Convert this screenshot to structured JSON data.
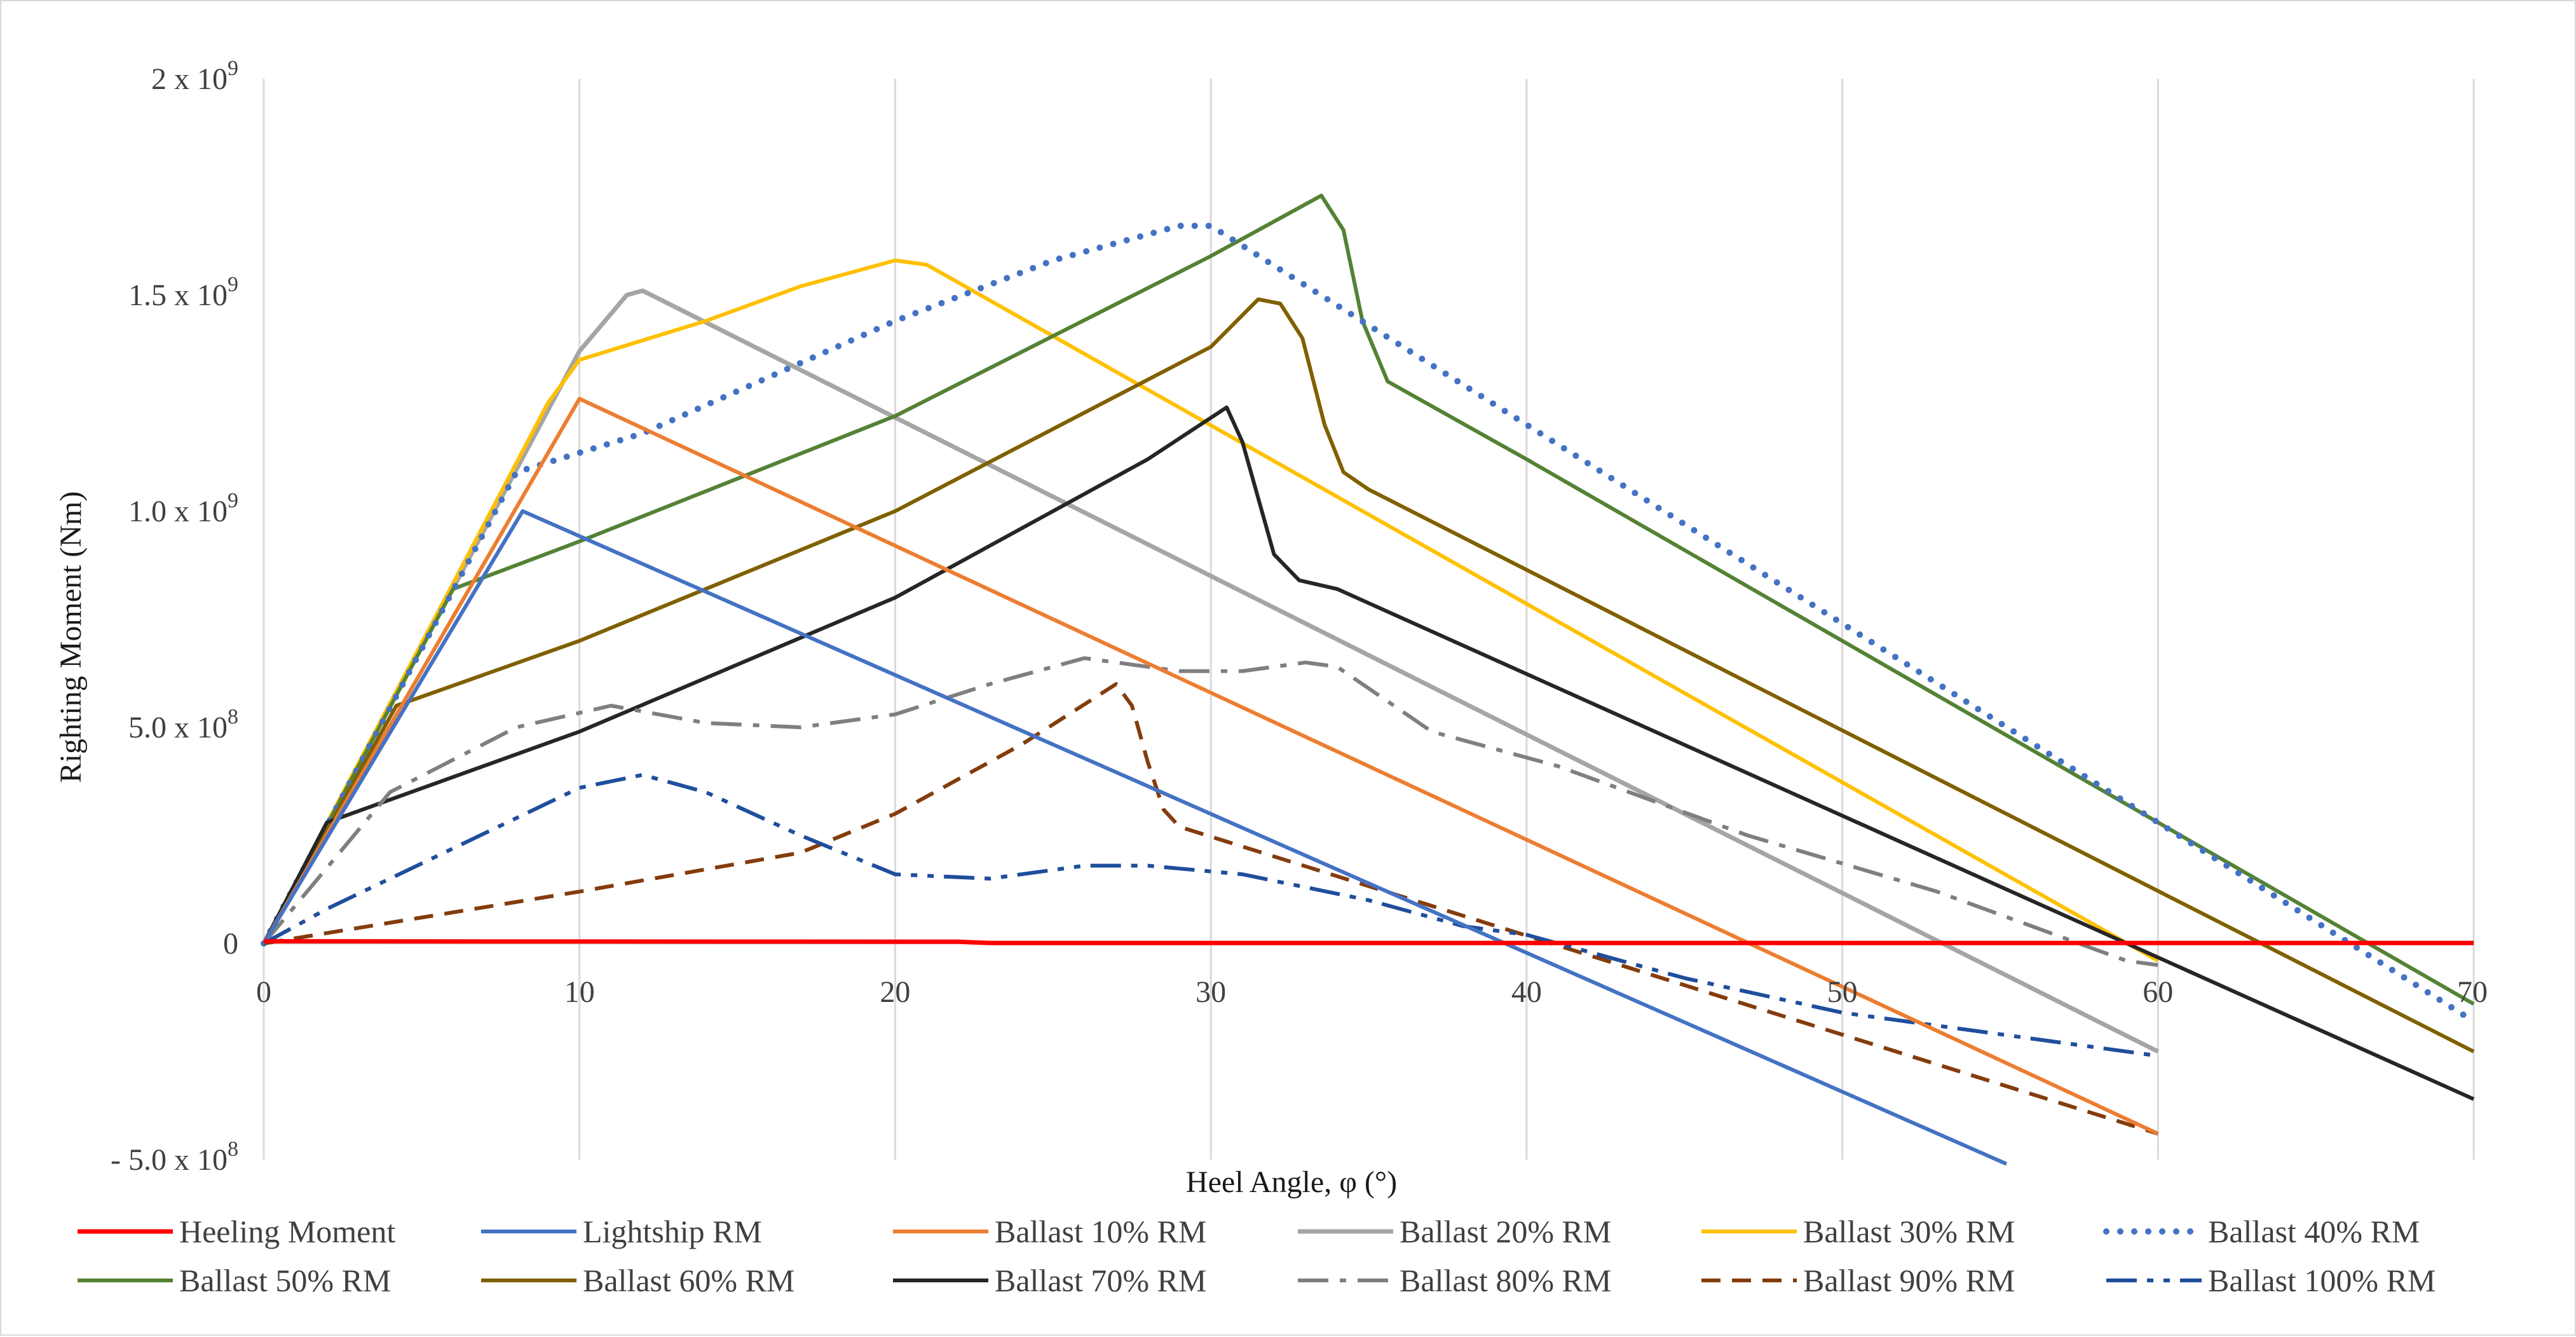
{
  "chart_data": {
    "type": "line",
    "title": "",
    "xlabel": "Heel Angle, φ (°)",
    "ylabel": "Righting Moment (Nm)",
    "xlim": [
      0,
      70
    ],
    "ylim": [
      -500000000,
      2000000000
    ],
    "grid": "vertical",
    "legend_position": "bottom",
    "x_ticks": [
      {
        "value": 0,
        "label": "0"
      },
      {
        "value": 10,
        "label": "10"
      },
      {
        "value": 20,
        "label": "20"
      },
      {
        "value": 30,
        "label": "30"
      },
      {
        "value": 40,
        "label": "40"
      },
      {
        "value": 50,
        "label": "50"
      },
      {
        "value": 60,
        "label": "60"
      },
      {
        "value": 70,
        "label": "70"
      }
    ],
    "y_ticks": [
      {
        "value": 2000000000,
        "mantissa": "2 x 10",
        "exp": "9"
      },
      {
        "value": 1500000000,
        "mantissa": "1.5 x 10",
        "exp": "9"
      },
      {
        "value": 1000000000,
        "mantissa": "1.0 x 10",
        "exp": "9"
      },
      {
        "value": 500000000,
        "mantissa": "5.0 x 10",
        "exp": "8"
      },
      {
        "value": 0,
        "mantissa": "0",
        "exp": ""
      },
      {
        "value": -500000000,
        "mantissa": "- 5.0 x 10",
        "exp": "8"
      }
    ],
    "series": [
      {
        "name": "Heeling Moment",
        "color": "#ff0000",
        "dash": "solid",
        "width": 7,
        "points": [
          [
            0,
            5000000.0
          ],
          [
            22,
            4000000.0
          ],
          [
            23,
            1000000.0
          ],
          [
            70,
            1000000.0
          ]
        ]
      },
      {
        "name": "Lightship RM",
        "color": "#4472c4",
        "dash": "solid",
        "width": 6,
        "points": [
          [
            0,
            0
          ],
          [
            8.2,
            1000000000.0
          ],
          [
            55.2,
            -510000000.0
          ]
        ]
      },
      {
        "name": "Ballast 10% RM",
        "color": "#ed7d31",
        "dash": "solid",
        "width": 6,
        "points": [
          [
            0,
            0
          ],
          [
            10,
            1260000000.0
          ],
          [
            60,
            -440000000.0
          ]
        ]
      },
      {
        "name": "Ballast 20% RM",
        "color": "#a5a5a5",
        "dash": "solid",
        "width": 7,
        "points": [
          [
            0,
            0
          ],
          [
            10,
            1370000000.0
          ],
          [
            11.5,
            1500000000.0
          ],
          [
            12,
            1510000000.0
          ],
          [
            60,
            -250000000.0
          ]
        ]
      },
      {
        "name": "Ballast 30% RM",
        "color": "#ffc000",
        "dash": "solid",
        "width": 6,
        "points": [
          [
            0,
            0
          ],
          [
            9,
            1250000000.0
          ],
          [
            10,
            1350000000.0
          ],
          [
            14,
            1440000000.0
          ],
          [
            17,
            1520000000.0
          ],
          [
            20,
            1580000000.0
          ],
          [
            21,
            1570000000.0
          ],
          [
            60,
            -40000000.0
          ]
        ]
      },
      {
        "name": "Ballast 40% RM",
        "color": "#4472c4",
        "dash": "dotted",
        "width": 10,
        "points": [
          [
            0,
            0
          ],
          [
            8,
            1090000000.0
          ],
          [
            12,
            1180000000.0
          ],
          [
            20,
            1440000000.0
          ],
          [
            25,
            1580000000.0
          ],
          [
            29,
            1660000000.0
          ],
          [
            30,
            1660000000.0
          ],
          [
            70,
            -180000000.0
          ]
        ]
      },
      {
        "name": "Ballast 50% RM",
        "color": "#548235",
        "dash": "solid",
        "width": 6,
        "points": [
          [
            0,
            0
          ],
          [
            6,
            820000000.0
          ],
          [
            10,
            930000000.0
          ],
          [
            20,
            1220000000.0
          ],
          [
            30,
            1590000000.0
          ],
          [
            33.5,
            1730000000.0
          ],
          [
            34.2,
            1650000000.0
          ],
          [
            34.8,
            1440000000.0
          ],
          [
            35.6,
            1300000000.0
          ],
          [
            40,
            1120000000.0
          ],
          [
            70,
            -140000000.0
          ]
        ]
      },
      {
        "name": "Ballast 60% RM",
        "color": "#806000",
        "dash": "solid",
        "width": 6,
        "points": [
          [
            0,
            0
          ],
          [
            4.2,
            550000000.0
          ],
          [
            10,
            700000000.0
          ],
          [
            20,
            1000000000.0
          ],
          [
            30,
            1380000000.0
          ],
          [
            31.5,
            1490000000.0
          ],
          [
            32.2,
            1480000000.0
          ],
          [
            32.9,
            1400000000.0
          ],
          [
            33.6,
            1200000000.0
          ],
          [
            34.2,
            1090000000.0
          ],
          [
            35,
            1050000000.0
          ],
          [
            70,
            -250000000.0
          ]
        ]
      },
      {
        "name": "Ballast 70% RM",
        "color": "#262626",
        "dash": "solid",
        "width": 6,
        "points": [
          [
            0,
            0
          ],
          [
            2,
            280000000.0
          ],
          [
            10,
            490000000.0
          ],
          [
            20,
            800000000.0
          ],
          [
            28,
            1120000000.0
          ],
          [
            30.5,
            1240000000.0
          ],
          [
            31,
            1160000000.0
          ],
          [
            32,
            900000000.0
          ],
          [
            32.8,
            840000000.0
          ],
          [
            34,
            820000000.0
          ],
          [
            70,
            -360000000.0
          ]
        ]
      },
      {
        "name": "Ballast 80% RM",
        "color": "#7f7f7f",
        "dash": "dashdot",
        "width": 6,
        "points": [
          [
            0,
            0
          ],
          [
            4,
            350000000.0
          ],
          [
            8,
            500000000.0
          ],
          [
            11,
            550000000.0
          ],
          [
            14,
            510000000.0
          ],
          [
            17,
            500000000.0
          ],
          [
            20,
            530000000.0
          ],
          [
            23,
            600000000.0
          ],
          [
            26,
            660000000.0
          ],
          [
            29,
            630000000.0
          ],
          [
            31,
            630000000.0
          ],
          [
            33,
            650000000.0
          ],
          [
            34,
            640000000.0
          ],
          [
            37,
            490000000.0
          ],
          [
            41,
            410000000.0
          ],
          [
            47,
            250000000.0
          ],
          [
            53,
            120000000.0
          ],
          [
            59,
            -40000000.0
          ],
          [
            60,
            -50000000.0
          ]
        ]
      },
      {
        "name": "Ballast 90% RM",
        "color": "#843c0c",
        "dash": "dashed",
        "width": 6,
        "points": [
          [
            0,
            0
          ],
          [
            10,
            120000000.0
          ],
          [
            17,
            210000000.0
          ],
          [
            20,
            300000000.0
          ],
          [
            24,
            460000000.0
          ],
          [
            27,
            600000000.0
          ],
          [
            27.5,
            550000000.0
          ],
          [
            28,
            420000000.0
          ],
          [
            28.5,
            310000000.0
          ],
          [
            29,
            270000000.0
          ],
          [
            60,
            -440000000.0
          ]
        ]
      },
      {
        "name": "Ballast 100% RM",
        "color": "#1f4e9c",
        "dash": "dashdotdot",
        "width": 6,
        "points": [
          [
            0,
            0
          ],
          [
            2,
            80000000.0
          ],
          [
            6,
            220000000.0
          ],
          [
            10,
            360000000.0
          ],
          [
            12,
            390000000.0
          ],
          [
            14,
            350000000.0
          ],
          [
            17,
            250000000.0
          ],
          [
            20,
            160000000.0
          ],
          [
            23,
            150000000.0
          ],
          [
            26,
            180000000.0
          ],
          [
            28,
            180000000.0
          ],
          [
            31,
            160000000.0
          ],
          [
            35,
            100000000.0
          ],
          [
            38,
            40000000.0
          ],
          [
            40,
            20000000.0
          ],
          [
            45,
            -80000000.0
          ],
          [
            50,
            -160000000.0
          ],
          [
            55,
            -210000000.0
          ],
          [
            60,
            -260000000.0
          ]
        ]
      }
    ]
  }
}
